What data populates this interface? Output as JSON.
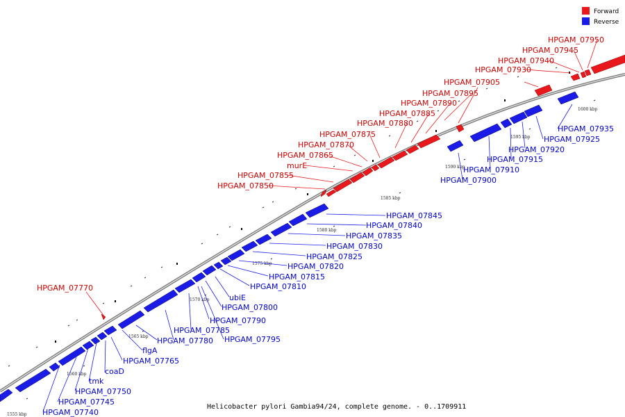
{
  "legend": {
    "forward_label": "Forward",
    "reverse_label": "Reverse",
    "forward_color": "#e8181c",
    "reverse_color": "#1b1be8"
  },
  "caption": "Helicobacter pylori Gambia94/24, complete genome. - 0..1709911",
  "scale_labels": [
    "1555 kbp",
    "1560 kbp",
    "1565 kbp",
    "1570 kbp",
    "1575 kbp",
    "1580 kbp",
    "1585 kbp",
    "1590 kbp",
    "1595 kbp",
    "1600 kbp"
  ],
  "forward_labels": [
    "HPGAM_07950",
    "HPGAM_07945",
    "HPGAM_07940",
    "HPGAM_07930",
    "HPGAM_07905",
    "HPGAM_07895",
    "HPGAM_07890",
    "HPGAM_07885",
    "HPGAM_07880",
    "HPGAM_07875",
    "HPGAM_07870",
    "HPGAM_07865",
    "murE",
    "HPGAM_07855",
    "HPGAM_07850",
    "HPGAM_07770"
  ],
  "reverse_labels": [
    "HPGAM_07935",
    "HPGAM_07925",
    "HPGAM_07920",
    "HPGAM_07915",
    "HPGAM_07910",
    "HPGAM_07900",
    "HPGAM_07845",
    "HPGAM_07840",
    "HPGAM_07835",
    "HPGAM_07830",
    "HPGAM_07825",
    "HPGAM_07820",
    "HPGAM_07815",
    "HPGAM_07810",
    "ubiE",
    "HPGAM_07800",
    "HPGAM_07790",
    "HPGAM_07785",
    "HPGAM_07795",
    "HPGAM_07780",
    "flgA",
    "HPGAM_07765",
    "coaD",
    "tmk",
    "HPGAM_07750",
    "HPGAM_07745",
    "HPGAM_07740"
  ]
}
